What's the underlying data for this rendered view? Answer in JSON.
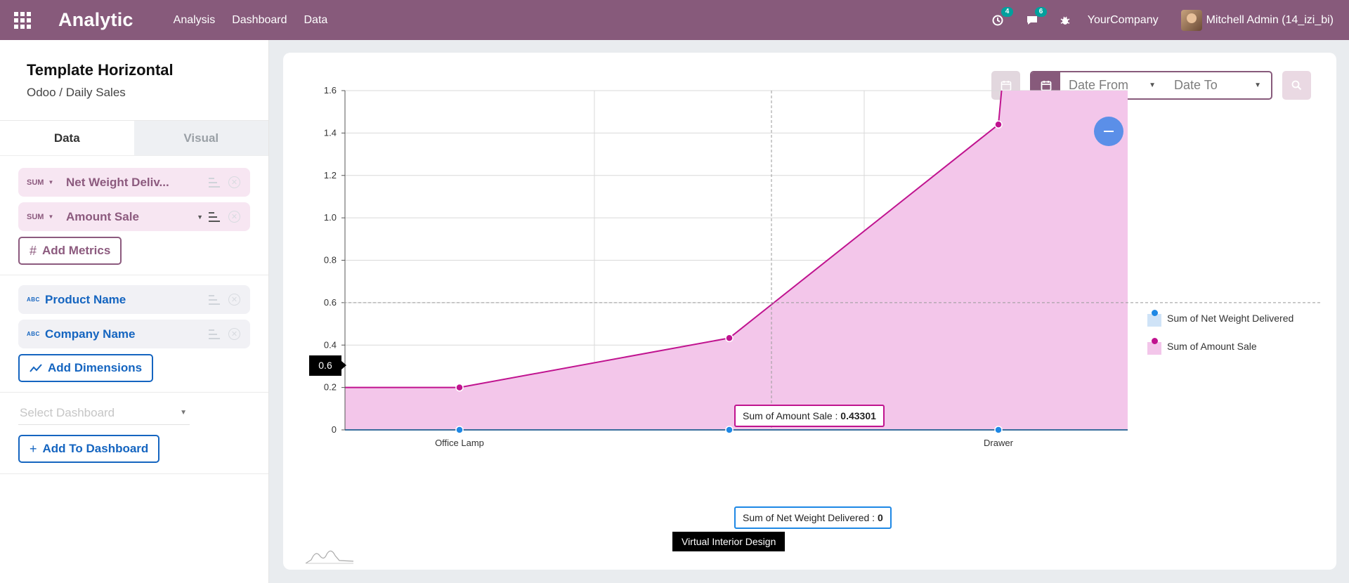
{
  "topbar": {
    "app_name": "Analytic",
    "nav": [
      "Analysis",
      "Dashboard",
      "Data"
    ],
    "activity_count": "4",
    "messages_count": "6",
    "company": "YourCompany",
    "user": "Mitchell Admin (14_izi_bi)",
    "color": "#875a7b"
  },
  "sidebar": {
    "title": "Template Horizontal",
    "subtitle": "Odoo / Daily Sales",
    "tabs": {
      "data": "Data",
      "visual": "Visual"
    },
    "metrics": [
      {
        "agg": "SUM",
        "label": "Net Weight Deliv..."
      },
      {
        "agg": "SUM",
        "label": "Amount Sale"
      }
    ],
    "add_metrics": "Add Metrics",
    "dimensions": [
      {
        "type": "ABC",
        "label": "Product Name"
      },
      {
        "type": "ABC",
        "label": "Company Name"
      }
    ],
    "add_dimensions": "Add Dimensions",
    "select_dashboard_placeholder": "Select Dashboard",
    "add_to_dashboard": "Add To Dashboard"
  },
  "filters": {
    "date_from_placeholder": "Date From",
    "date_to_placeholder": "Date To"
  },
  "chart_data": {
    "type": "area",
    "categories": [
      "Office Lamp",
      "Virtual Interior Design",
      "Drawer"
    ],
    "series": [
      {
        "name": "Sum of Net Weight Delivered",
        "values": [
          0,
          0,
          0
        ],
        "color": "#1e88e5"
      },
      {
        "name": "Sum of Amount Sale",
        "values": [
          0.2,
          0.43301,
          1.44
        ],
        "color": "#c0138f"
      }
    ],
    "ylim": [
      0,
      1.6
    ],
    "yticks": [
      "0",
      "0.2",
      "0.4",
      "0.6",
      "0.8",
      "1.0",
      "1.2",
      "1.4",
      "1.6"
    ],
    "grid": true,
    "legend": "right",
    "tooltips": {
      "amount_label": "Sum of Amount Sale : ",
      "amount_value": "0.43301",
      "weight_label": "Sum of Net Weight Delivered : ",
      "weight_value": "0"
    },
    "crosshair": {
      "x_label": "Virtual Interior Design",
      "y_label": "0.6"
    }
  }
}
